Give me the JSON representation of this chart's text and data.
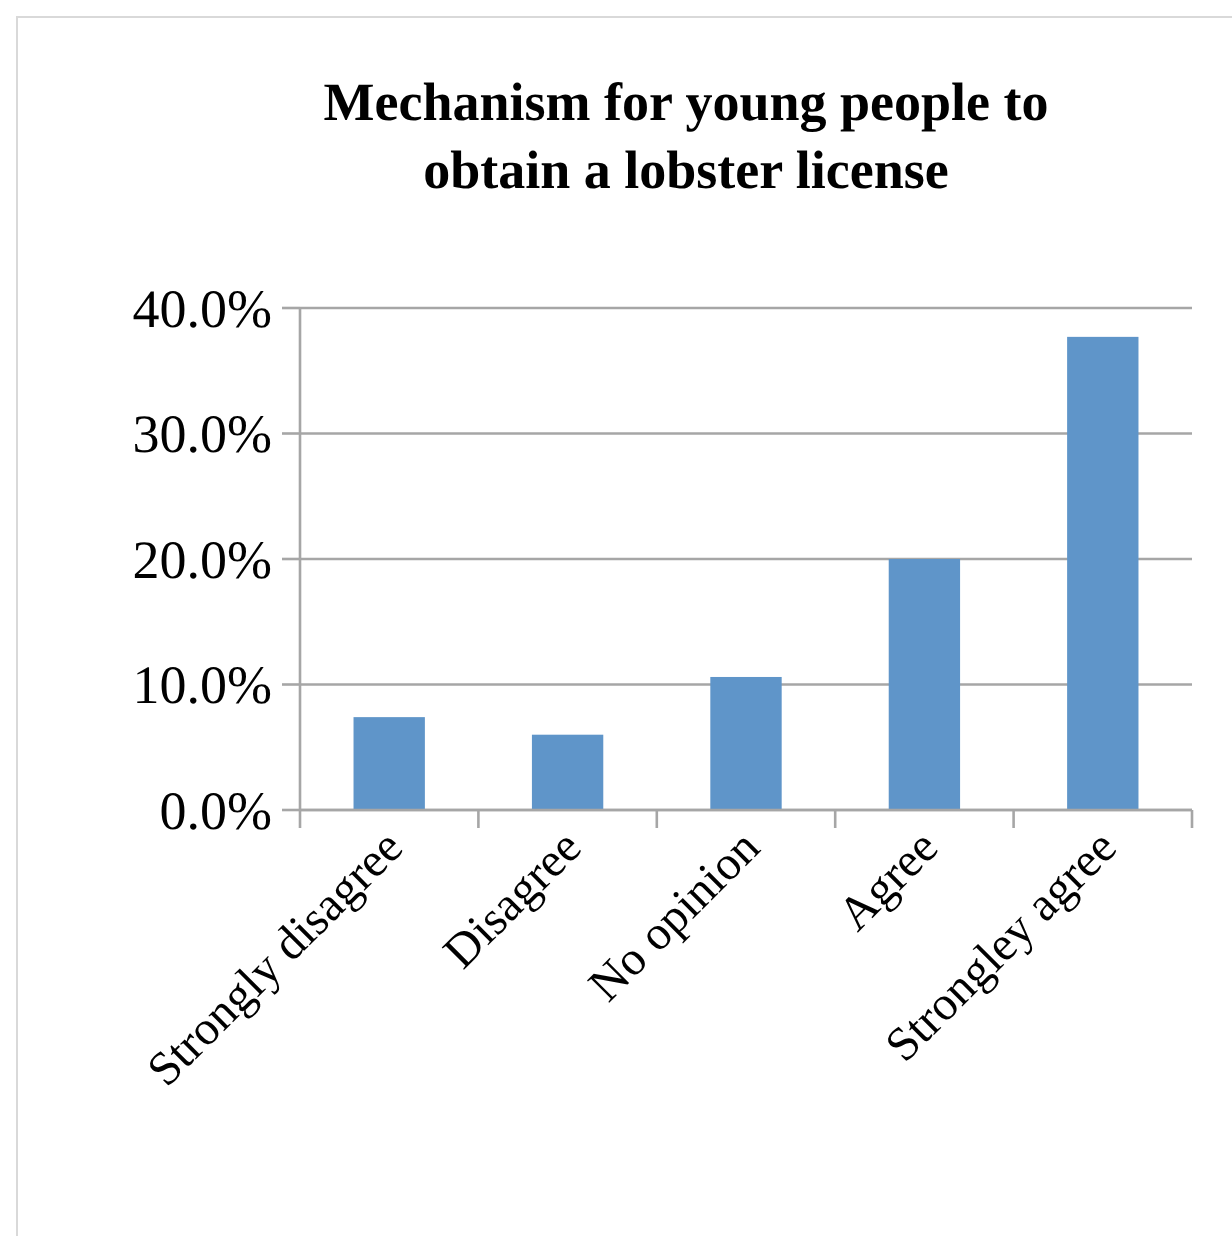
{
  "chart_data": {
    "type": "bar",
    "title": "Mechanism for young people to obtain a lobster license",
    "categories": [
      "Strongly disagree",
      "Disagree",
      "No opinion",
      "Agree",
      "Strongley agree"
    ],
    "values": [
      7.4,
      6.0,
      10.6,
      20.0,
      37.7
    ],
    "color": "#5f95c9",
    "ylim": [
      0,
      40
    ],
    "yticks": [
      {
        "value": 0,
        "label": "0.0%"
      },
      {
        "value": 10,
        "label": "10.0%"
      },
      {
        "value": 20,
        "label": "20.0%"
      },
      {
        "value": 30,
        "label": "30.0%"
      },
      {
        "value": 40,
        "label": "40.0%"
      }
    ],
    "grid": "y"
  }
}
